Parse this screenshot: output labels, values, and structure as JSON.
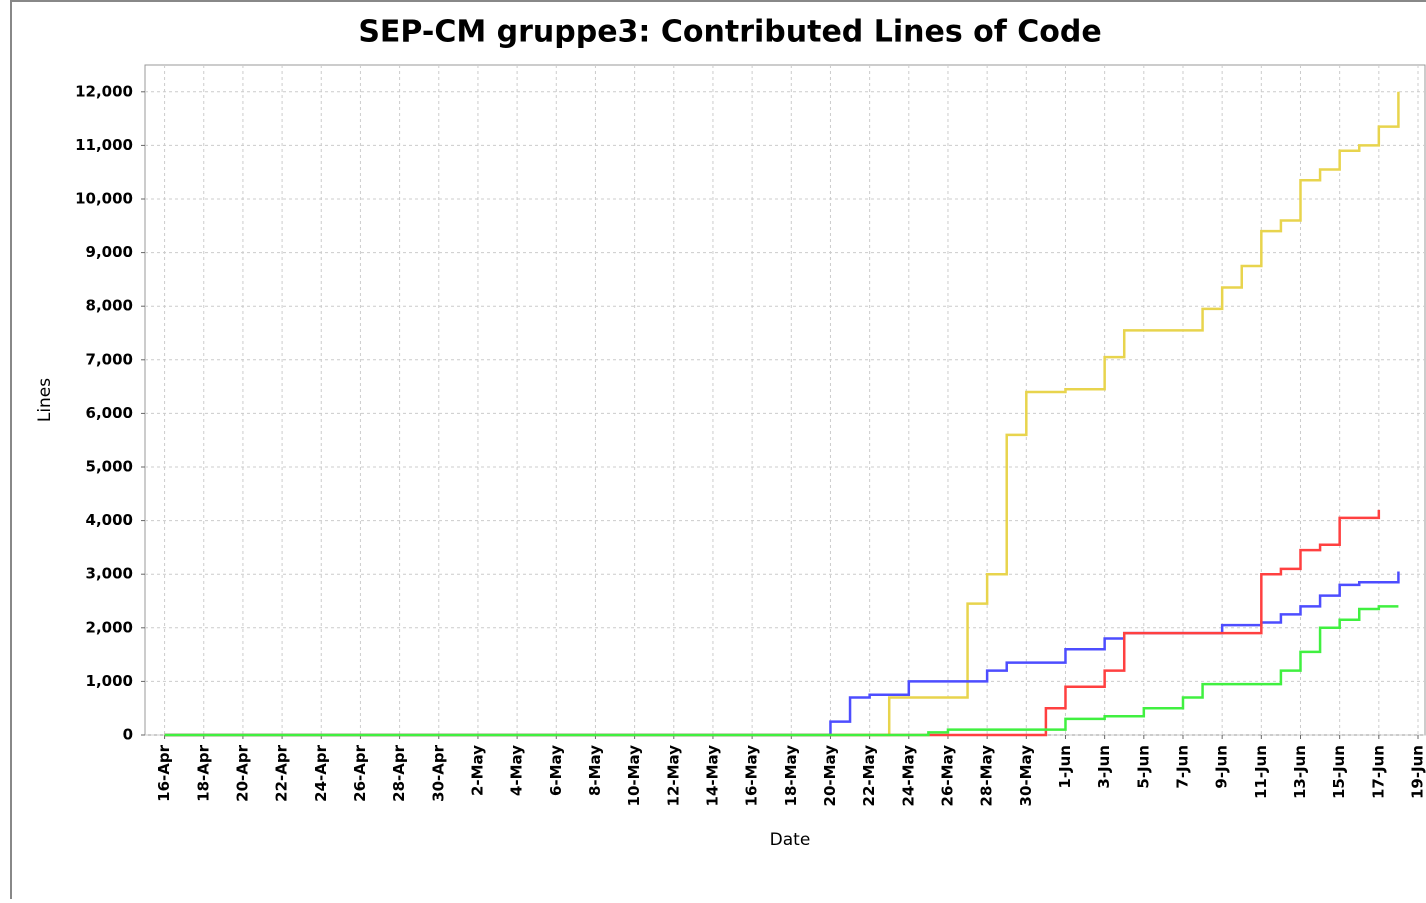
{
  "chart_data": {
    "type": "line",
    "step": true,
    "title": "SEP-CM gruppe3: Contributed Lines of Code",
    "x_label": "Date",
    "y_label": "Lines",
    "grid": true,
    "xlim": [
      "04-15",
      "06-19"
    ],
    "ylim": [
      0,
      12500
    ],
    "yticks": [
      0,
      {
        "value": 1000,
        "label": "1,000"
      },
      {
        "value": 2000,
        "label": "2,000"
      },
      {
        "value": 3000,
        "label": "3,000"
      },
      {
        "value": 4000,
        "label": "4,000"
      },
      {
        "value": 5000,
        "label": "5,000"
      },
      {
        "value": 6000,
        "label": "6,000"
      },
      {
        "value": 7000,
        "label": "7,000"
      },
      {
        "value": 8000,
        "label": "8,000"
      },
      {
        "value": 9000,
        "label": "9,000"
      },
      {
        "value": 10000,
        "label": "10,000"
      },
      {
        "value": 11000,
        "label": "11,000"
      },
      {
        "value": 12000,
        "label": "12,000"
      }
    ],
    "xticks": [
      {
        "value": "04-16",
        "label": "16-Apr"
      },
      {
        "value": "04-18",
        "label": "18-Apr"
      },
      {
        "value": "04-20",
        "label": "20-Apr"
      },
      {
        "value": "04-22",
        "label": "22-Apr"
      },
      {
        "value": "04-24",
        "label": "24-Apr"
      },
      {
        "value": "04-26",
        "label": "26-Apr"
      },
      {
        "value": "04-28",
        "label": "28-Apr"
      },
      {
        "value": "04-30",
        "label": "30-Apr"
      },
      {
        "value": "05-02",
        "label": "2-May"
      },
      {
        "value": "05-04",
        "label": "4-May"
      },
      {
        "value": "05-06",
        "label": "6-May"
      },
      {
        "value": "05-08",
        "label": "8-May"
      },
      {
        "value": "05-10",
        "label": "10-May"
      },
      {
        "value": "05-12",
        "label": "12-May"
      },
      {
        "value": "05-14",
        "label": "14-May"
      },
      {
        "value": "05-16",
        "label": "16-May"
      },
      {
        "value": "05-18",
        "label": "18-May"
      },
      {
        "value": "05-20",
        "label": "20-May"
      },
      {
        "value": "05-22",
        "label": "22-May"
      },
      {
        "value": "05-24",
        "label": "24-May"
      },
      {
        "value": "05-26",
        "label": "26-May"
      },
      {
        "value": "05-28",
        "label": "28-May"
      },
      {
        "value": "05-30",
        "label": "30-May"
      },
      {
        "value": "06-01",
        "label": "1-Jun"
      },
      {
        "value": "06-03",
        "label": "3-Jun"
      },
      {
        "value": "06-05",
        "label": "5-Jun"
      },
      {
        "value": "06-07",
        "label": "7-Jun"
      },
      {
        "value": "06-09",
        "label": "9-Jun"
      },
      {
        "value": "06-11",
        "label": "11-Jun"
      },
      {
        "value": "06-13",
        "label": "13-Jun"
      },
      {
        "value": "06-15",
        "label": "15-Jun"
      },
      {
        "value": "06-17",
        "label": "17-Jun"
      },
      {
        "value": "06-19",
        "label": "19-Jun"
      }
    ],
    "series": [
      {
        "color": "#e8d44d",
        "x": [
          "04-16",
          "05-23",
          "05-27",
          "05-28",
          "05-29",
          "05-30",
          "06-01",
          "06-03",
          "06-04",
          "06-08",
          "06-09",
          "06-10",
          "06-11",
          "06-12",
          "06-13",
          "06-14",
          "06-15",
          "06-16",
          "06-17",
          "06-18"
        ],
        "values": [
          0,
          700,
          2450,
          3000,
          5600,
          6400,
          6450,
          7050,
          7550,
          7950,
          8350,
          8750,
          9400,
          9600,
          10350,
          10550,
          10900,
          11000,
          11350,
          12000
        ]
      },
      {
        "color": "#4d4dff",
        "x": [
          "04-16",
          "05-20",
          "05-21",
          "05-22",
          "05-24",
          "05-28",
          "05-29",
          "06-01",
          "06-03",
          "06-04",
          "06-09",
          "06-11",
          "06-12",
          "06-13",
          "06-14",
          "06-15",
          "06-16",
          "06-18"
        ],
        "values": [
          0,
          250,
          700,
          750,
          1000,
          1200,
          1350,
          1600,
          1800,
          1900,
          2050,
          2100,
          2250,
          2400,
          2600,
          2800,
          2850,
          3050
        ]
      },
      {
        "color": "#ff4040",
        "x": [
          "04-16",
          "05-31",
          "06-01",
          "06-03",
          "06-04",
          "06-11",
          "06-12",
          "06-13",
          "06-14",
          "06-15",
          "06-17"
        ],
        "values": [
          0,
          500,
          900,
          1200,
          1900,
          3000,
          3100,
          3450,
          3550,
          4050,
          4200
        ]
      },
      {
        "color": "#40f040",
        "x": [
          "04-16",
          "05-25",
          "05-26",
          "06-01",
          "06-03",
          "06-05",
          "06-07",
          "06-08",
          "06-12",
          "06-13",
          "06-14",
          "06-15",
          "06-16",
          "06-17",
          "06-18"
        ],
        "values": [
          0,
          50,
          100,
          300,
          350,
          500,
          700,
          950,
          1200,
          1550,
          2000,
          2150,
          2350,
          2400,
          2400
        ]
      }
    ]
  }
}
